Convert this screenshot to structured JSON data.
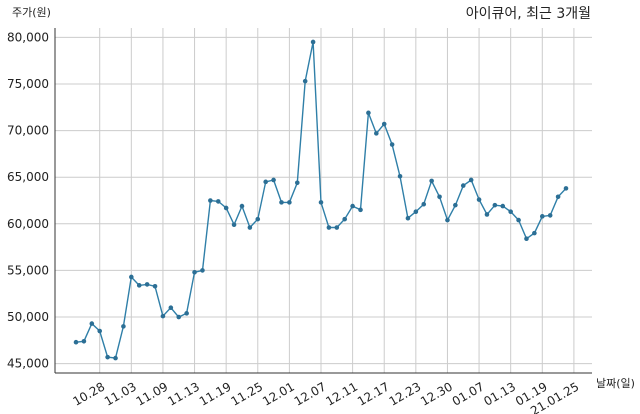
{
  "chart_data": {
    "type": "line",
    "title": "아이큐어, 최근 3개월",
    "ylabel": "주가(원)",
    "xlabel": "날짜(일)",
    "ylim": [
      44000,
      81000
    ],
    "yticks": [
      45000,
      50000,
      55000,
      60000,
      65000,
      70000,
      75000,
      80000
    ],
    "ytick_labels": [
      "45,000",
      "50,000",
      "55,000",
      "60,000",
      "65,000",
      "70,000",
      "75,000",
      "80,000"
    ],
    "xtick_labels": [
      "10.28",
      "11.03",
      "11.09",
      "11.13",
      "11.19",
      "11.25",
      "12.01",
      "12.07",
      "12.11",
      "12.17",
      "12.23",
      "12.30",
      "01.07",
      "01.13",
      "01.19",
      "21.01.25"
    ],
    "xtick_index": [
      3,
      7,
      11,
      15,
      19,
      23,
      27,
      31,
      35,
      39,
      43,
      47,
      51,
      55,
      59,
      63
    ],
    "grid": true,
    "series": [
      {
        "values": [
          47300,
          47400,
          49300,
          48500,
          45700,
          45600,
          49000,
          54300,
          53400,
          53500,
          53300,
          50100,
          51000,
          50000,
          50400,
          54800,
          55000,
          62500,
          62400,
          61700,
          59900,
          61900,
          59600,
          60500,
          64500,
          64700,
          62300,
          62300,
          64400,
          75300,
          79500,
          62300,
          59600,
          59600,
          60500,
          61900,
          61500,
          71900,
          69700,
          70700,
          68500,
          65100,
          60600,
          61300,
          62100,
          64600,
          62900,
          60400,
          62000,
          64100,
          64700,
          62600,
          61000,
          62000,
          61900,
          61300,
          60400,
          58400,
          59000,
          60800,
          60900,
          62900,
          63800
        ]
      }
    ]
  }
}
